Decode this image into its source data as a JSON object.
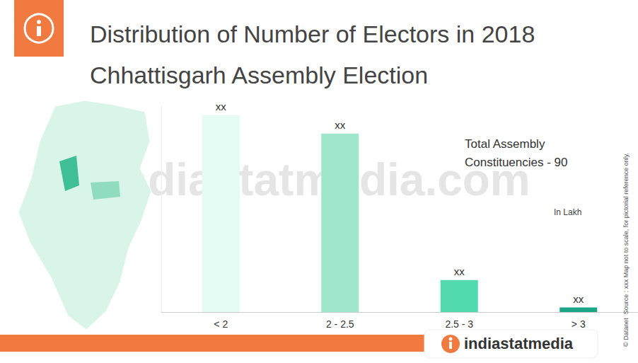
{
  "chart_data": {
    "type": "bar",
    "title": "Distribution of Number of Electors in 2018 Chhattisgarh Assembly Election",
    "categories": [
      "< 2",
      "2 - 2.5",
      "2.5 - 3",
      "> 3"
    ],
    "values": [
      43,
      39,
      7,
      1
    ],
    "value_labels": [
      "xx",
      "xx",
      "xx",
      "xx"
    ],
    "colors": [
      "#e3fbf2",
      "#9fe6cc",
      "#52d9b0",
      "#1ba584"
    ],
    "ylim": [
      0,
      45
    ],
    "data_labels": true,
    "tick_labels": "x",
    "annotations": [
      "Total Assembly Constituencies - 90",
      "In Lakh"
    ],
    "watermark": "indiastatmedia.com",
    "footer": "indiastatmedia",
    "source_note": "© Datanet  Source : xxx Map not to scale, for pictorial reference only."
  }
}
